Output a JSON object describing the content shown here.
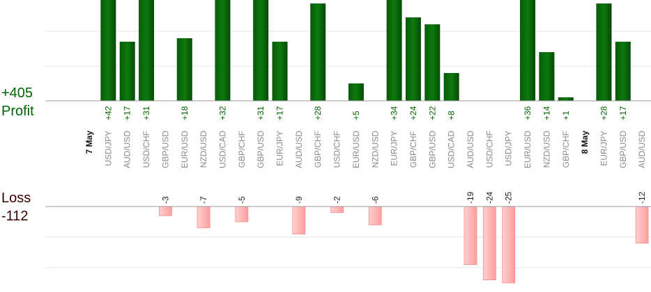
{
  "chart_data": {
    "type": "bar",
    "profit_label": "Profit",
    "loss_label": "Loss",
    "profit_total": "+405",
    "loss_total": "-112",
    "colors": {
      "profit_bar": "#0a6b0a",
      "loss_bar": "#ffb3b3",
      "profit_text": "#006400",
      "loss_text": "#3a0000"
    },
    "categories": [
      {
        "label": "7 May",
        "date_marker": true,
        "value": null
      },
      {
        "label": "USD/JPY",
        "value": 42
      },
      {
        "label": "AUD/USD",
        "value": 17
      },
      {
        "label": "USD/CHF",
        "value": 31
      },
      {
        "label": "GBP/USD",
        "value": -3
      },
      {
        "label": "EUR/USD",
        "value": 18
      },
      {
        "label": "NZD/USD",
        "value": -7
      },
      {
        "label": "USD/CAD",
        "value": 32
      },
      {
        "label": "GBP/CHF",
        "value": -5
      },
      {
        "label": "GBP/USD",
        "value": 31
      },
      {
        "label": "EUR/JPY",
        "value": 17
      },
      {
        "label": "AUD/USD",
        "value": -9
      },
      {
        "label": "GBP/CHF",
        "value": 28
      },
      {
        "label": "USD/CHF",
        "value": -2
      },
      {
        "label": "EUR/USD",
        "value": 5
      },
      {
        "label": "NZD/USD",
        "value": -6
      },
      {
        "label": "EUR/JPY",
        "value": 34
      },
      {
        "label": "GBP/CHF",
        "value": 24
      },
      {
        "label": "GBP/USD",
        "value": 22
      },
      {
        "label": "USD/CAD",
        "value": 8
      },
      {
        "label": "AUD/USD",
        "value": -19
      },
      {
        "label": "USD/CHF",
        "value": -24
      },
      {
        "label": "USD/JPY",
        "value": -25
      },
      {
        "label": "EUR/USD",
        "value": 36
      },
      {
        "label": "NZD/USD",
        "value": 14
      },
      {
        "label": "GBP/CHF",
        "value": 1
      },
      {
        "label": "8 May",
        "date_marker": true,
        "value": null
      },
      {
        "label": "EUR/JPY",
        "value": 28
      },
      {
        "label": "GBP/USD",
        "value": 17
      },
      {
        "label": "AUD/USD",
        "value": -12
      }
    ],
    "value_labels": [
      null,
      "+42",
      "+17",
      "+31",
      "-3",
      "+18",
      "-7",
      "+32",
      "-5",
      "+31",
      "+17",
      "-9",
      "+28",
      "-2",
      "+5",
      "-6",
      "+34",
      "+24",
      "+22",
      "+8",
      "-19",
      "-24",
      "-25",
      "+36",
      "+14",
      "+1",
      null,
      "+28",
      "+17",
      "-12"
    ],
    "profit_axis_max": 29,
    "loss_axis_max": 25,
    "gridlines_profit": [
      10,
      20
    ],
    "gridlines_loss": [
      10,
      20
    ],
    "grid": true
  }
}
